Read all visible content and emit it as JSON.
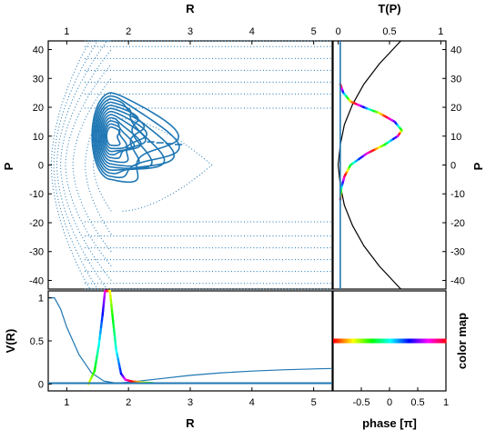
{
  "chart_data": [
    {
      "type": "contour",
      "panel": "phase-space",
      "xlabel": "R",
      "ylabel": "P",
      "xlim": [
        0.7,
        5.3
      ],
      "ylim": [
        -43,
        43
      ],
      "xticks": [
        1,
        2,
        3,
        4,
        5
      ],
      "yticks": [
        -40,
        -30,
        -20,
        -10,
        0,
        10,
        20,
        30,
        40
      ],
      "energy_contours": {
        "style": "dotted",
        "color": "#1f77b4",
        "levels": [
          {
            "rmin": 1.43,
            "rmax": 3.35,
            "pmax": 16
          },
          {
            "rmin": 1.3,
            "rmax": 5.3,
            "pmax": 24
          },
          {
            "rmin": 1.1,
            "rmax": 5.3,
            "pmax": 30
          },
          {
            "rmin": 0.98,
            "rmax": 5.3,
            "pmax": 35
          },
          {
            "rmin": 0.9,
            "rmax": 5.3,
            "pmax": 40
          },
          {
            "rmin": 0.84,
            "rmax": 5.3,
            "pmax": 45
          },
          {
            "rmin": 0.79,
            "rmax": 5.3,
            "pmax": 50
          },
          {
            "rmin": 0.75,
            "rmax": 5.3,
            "pmax": 55
          }
        ]
      },
      "wavepacket": {
        "style": "solid",
        "color": "#1f77b4",
        "center": [
          1.72,
          10
        ],
        "x_extent": [
          1.4,
          2.9
        ],
        "p_extent": [
          -5,
          25
        ]
      }
    },
    {
      "type": "line",
      "panel": "momentum-distribution",
      "xlabel": "T(P)",
      "ylabel": "P",
      "xlim": [
        -0.05,
        1.05
      ],
      "ylim": [
        -43,
        43
      ],
      "xticks": [
        0,
        0.5,
        1
      ],
      "yticks": [
        -40,
        -30,
        -20,
        -10,
        0,
        10,
        20,
        30,
        40
      ],
      "series": [
        {
          "style": "black",
          "x": [
            0.61,
            0.4,
            0.25,
            0.14,
            0.06,
            0.02,
            0.0,
            0.02,
            0.06,
            0.14,
            0.25,
            0.4,
            0.61
          ],
          "y": [
            -43,
            -35,
            -28,
            -21,
            -14,
            -7,
            0,
            7,
            14,
            21,
            28,
            35,
            43
          ]
        },
        {
          "style": "phase-colored",
          "x": [
            0.02,
            0.03,
            0.06,
            0.12,
            0.28,
            0.45,
            0.58,
            0.62,
            0.55,
            0.4,
            0.25,
            0.12,
            0.05,
            0.02
          ],
          "y": [
            -12,
            -8,
            -4,
            0,
            4,
            7,
            10,
            12,
            15,
            18,
            20,
            22,
            25,
            28
          ]
        },
        {
          "style": "baseline",
          "x": [
            0.02,
            0.02
          ],
          "y": [
            -43,
            43
          ]
        }
      ]
    },
    {
      "type": "line",
      "panel": "potential",
      "xlabel": "R",
      "ylabel": "V(R)",
      "xlim": [
        0.7,
        5.3
      ],
      "ylim": [
        -0.08,
        1.08
      ],
      "xticks": [
        1,
        2,
        3,
        4,
        5
      ],
      "yticks": [
        0,
        0.5,
        1
      ],
      "series": [
        {
          "style": "line",
          "color": "#1f77b4",
          "x": [
            0.7,
            0.8,
            0.9,
            1.0,
            1.2,
            1.4,
            1.6,
            1.8,
            2.0,
            2.5,
            3.0,
            3.5,
            4.0,
            4.5,
            5.0,
            5.3
          ],
          "y": [
            1.0,
            1.0,
            0.87,
            0.66,
            0.34,
            0.13,
            0.035,
            0.01,
            0.02,
            0.06,
            0.1,
            0.13,
            0.15,
            0.165,
            0.175,
            0.18
          ]
        },
        {
          "style": "phase-colored",
          "x": [
            1.35,
            1.45,
            1.52,
            1.58,
            1.62,
            1.66,
            1.7,
            1.74,
            1.8,
            1.88,
            1.95,
            2.05,
            2.2,
            2.4
          ],
          "y": [
            0.0,
            0.15,
            0.45,
            0.8,
            1.08,
            1.08,
            1.08,
            0.8,
            0.4,
            0.12,
            0.05,
            0.03,
            0.02,
            0.01
          ]
        },
        {
          "style": "baseline",
          "color": "#1f77b4",
          "x": [
            0.7,
            5.3
          ],
          "y": [
            0.01,
            0.01
          ]
        }
      ]
    },
    {
      "type": "colorbar",
      "panel": "phase-color-map",
      "xlabel": "phase [π]",
      "ylabel": "color map",
      "xlim": [
        -1,
        1
      ],
      "xticks": [
        "-0.5",
        "0",
        "0.5",
        "1"
      ],
      "level": 0.5
    }
  ]
}
